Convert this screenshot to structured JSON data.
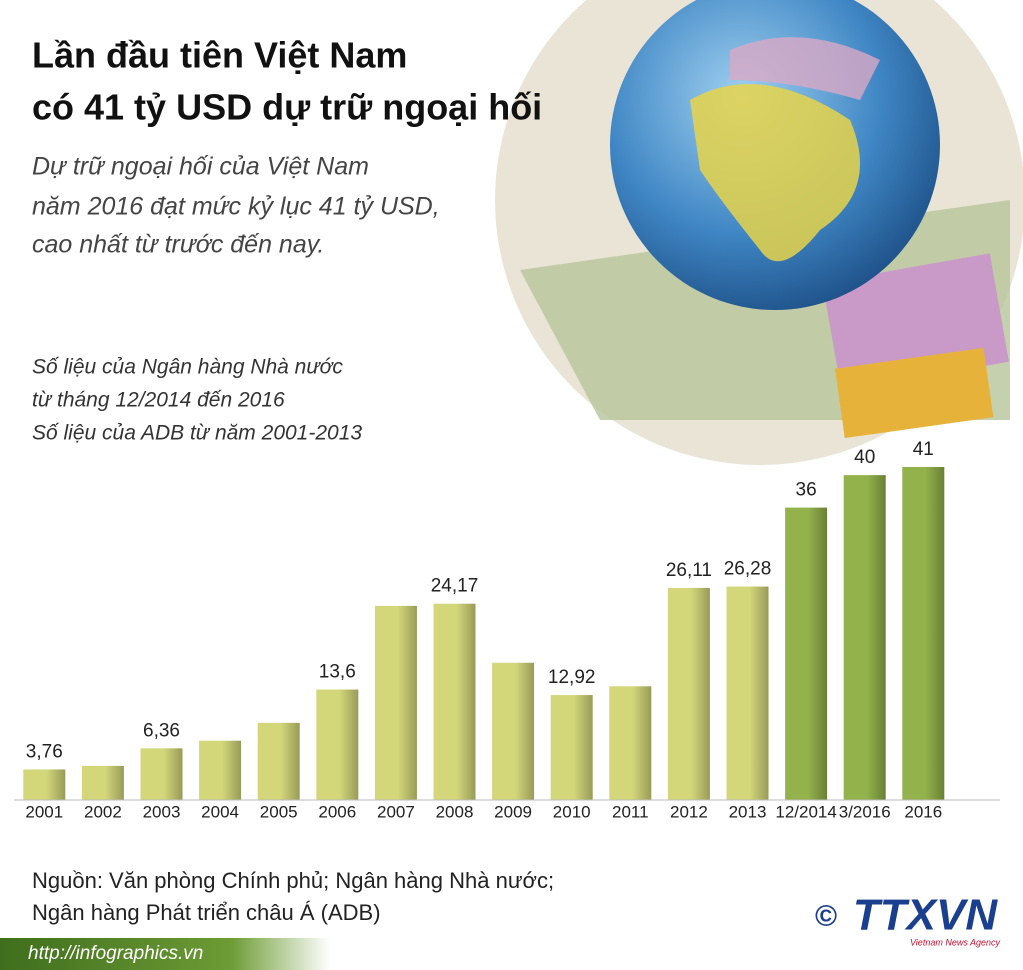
{
  "chart_data": {
    "type": "bar",
    "title": [
      "Lần đầu tiên Việt Nam",
      "có 41 tỷ USD dự trữ ngoại hối"
    ],
    "subtitle": [
      "Dự trữ ngoại hối của Việt Nam",
      "năm 2016 đạt mức kỷ lục 41 tỷ USD,",
      "cao nhất từ trước đến nay."
    ],
    "notes": [
      "Số liệu của Ngân hàng Nhà nước",
      "từ tháng 12/2014 đến 2016",
      "Số liệu của ADB từ năm 2001-2013"
    ],
    "categories": [
      "2001",
      "2002",
      "2003",
      "2004",
      "2005",
      "2006",
      "2007",
      "2008",
      "2009",
      "2010",
      "2011",
      "2012",
      "2013",
      "12/2014",
      "3/2016",
      "2016"
    ],
    "values": [
      3.76,
      4.2,
      6.36,
      7.3,
      9.5,
      13.6,
      23.9,
      24.17,
      16.9,
      12.92,
      14,
      26.11,
      26.28,
      36,
      40,
      41
    ],
    "value_labels": [
      "3,76",
      null,
      "6,36",
      null,
      null,
      "13,6",
      null,
      "24,17",
      null,
      "12,92",
      null,
      "26,11",
      "26,28",
      "36",
      "40",
      "41"
    ],
    "colors": [
      "#d3d77a",
      "#d3d77a",
      "#d3d77a",
      "#d3d77a",
      "#d3d77a",
      "#d3d77a",
      "#d3d77a",
      "#d3d77a",
      "#d3d77a",
      "#d3d77a",
      "#d3d77a",
      "#d3d77a",
      "#d3d77a",
      "#93b24b",
      "#93b24b",
      "#93b24b"
    ],
    "source": [
      "Nguồn: Văn phòng Chính phủ; Ngân hàng Nhà nước;",
      "Ngân hàng Phát triển châu Á (ADB)"
    ]
  },
  "footer": {
    "url": "http://infographics.vn",
    "copyright": "©",
    "logo": "TTXVN",
    "tagline": "Vietnam News Agency"
  }
}
